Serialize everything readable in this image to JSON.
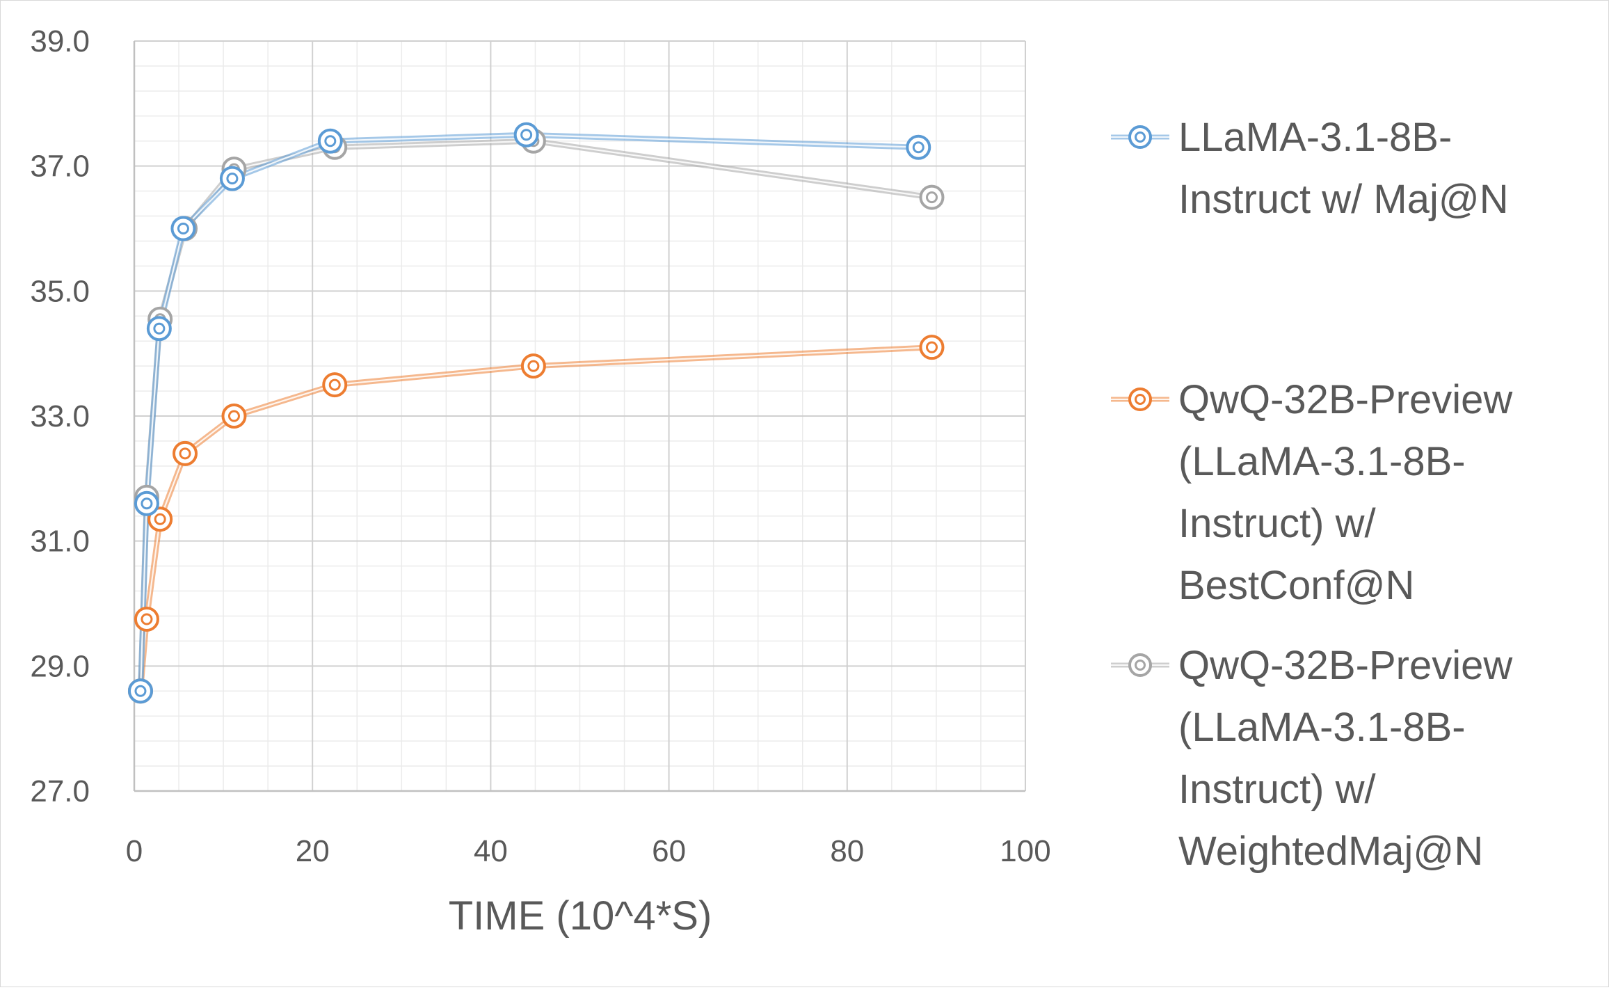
{
  "chart_data": {
    "type": "line",
    "title": "",
    "xlabel": "TIME (10^4*S)",
    "ylabel": "",
    "xlim": [
      0,
      100
    ],
    "ylim": [
      27,
      39
    ],
    "x_ticks": [
      "0",
      "20",
      "40",
      "60",
      "80",
      "100"
    ],
    "y_ticks": [
      "27.0",
      "29.0",
      "31.0",
      "33.0",
      "35.0",
      "37.0",
      "39.0"
    ],
    "grid": true,
    "legend_position": "right",
    "series": [
      {
        "name": "LLaMA-3.1-8B-Instruct w/ Maj@N",
        "legend_lines": [
          "LLaMA-3.1-8B-",
          "Instruct w/ Maj@N"
        ],
        "color": "#5b9bd5",
        "x": [
          0.7,
          1.4,
          2.8,
          5.5,
          11.0,
          22.0,
          44.0,
          88.0
        ],
        "y": [
          28.6,
          31.6,
          34.4,
          36.0,
          36.8,
          37.4,
          37.5,
          37.3
        ]
      },
      {
        "name": "QwQ-32B-Preview (LLaMA-3.1-8B-Instruct) w/ BestConf@N",
        "legend_lines": [
          "QwQ-32B-Preview",
          "(LLaMA-3.1-8B-",
          "Instruct) w/",
          "BestConf@N"
        ],
        "color": "#ed7d31",
        "x": [
          0.7,
          1.4,
          2.9,
          5.7,
          11.2,
          22.5,
          44.8,
          89.5
        ],
        "y": [
          28.6,
          29.75,
          31.35,
          32.4,
          33.0,
          33.5,
          33.8,
          34.1
        ]
      },
      {
        "name": "QwQ-32B-Preview (LLaMA-3.1-8B-Instruct) w/ WeightedMaj@N",
        "legend_lines": [
          "QwQ-32B-Preview",
          "(LLaMA-3.1-8B-",
          "Instruct) w/",
          "WeightedMaj@N"
        ],
        "color": "#a5a5a5",
        "x": [
          0.7,
          1.4,
          2.9,
          5.7,
          11.2,
          22.5,
          44.8,
          89.5
        ],
        "y": [
          28.6,
          31.7,
          34.55,
          36.0,
          36.95,
          37.3,
          37.4,
          36.5
        ]
      }
    ]
  }
}
